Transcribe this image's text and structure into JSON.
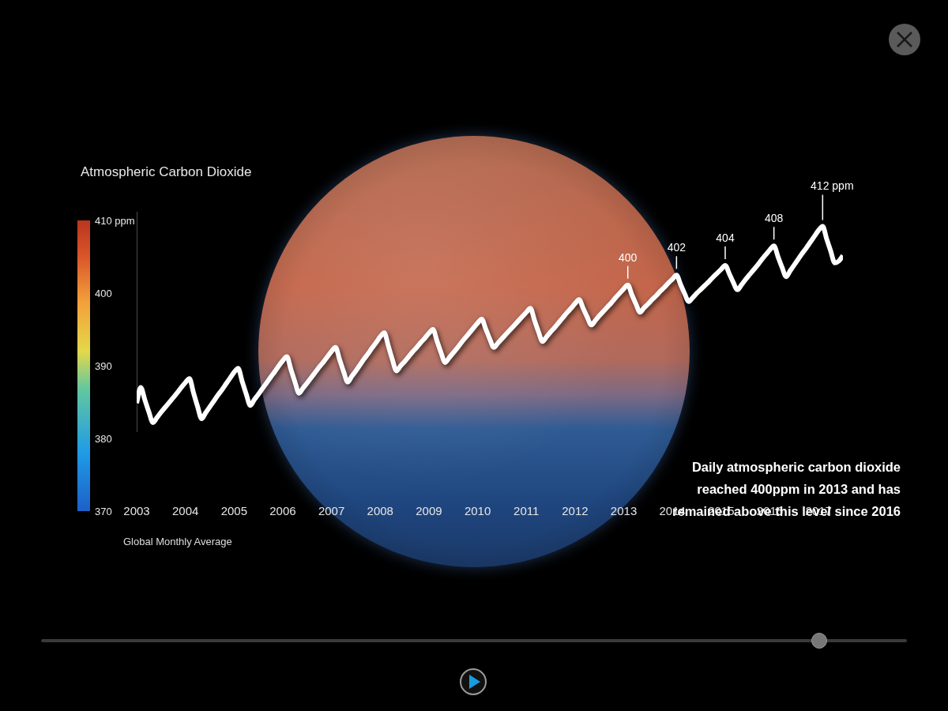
{
  "chart_data": {
    "type": "line",
    "title": "Atmospheric Carbon Dioxide",
    "caption": "Global Monthly Average",
    "note": "Daily atmospheric carbon dioxide reached 400ppm in 2013 and has remained above this level since 2016",
    "categories": [
      "2003",
      null,
      null,
      null,
      null,
      null,
      null,
      null,
      null,
      null,
      null,
      null,
      "2004",
      null,
      null,
      null,
      null,
      null,
      null,
      null,
      null,
      null,
      null,
      null,
      "2005",
      null,
      null,
      null,
      null,
      null,
      null,
      null,
      null,
      null,
      null,
      null,
      "2006",
      null,
      null,
      null,
      null,
      null,
      null,
      null,
      null,
      null,
      null,
      null,
      "2007",
      null,
      null,
      null,
      null,
      null,
      null,
      null,
      null,
      null,
      null,
      null,
      "2008",
      null,
      null,
      null,
      null,
      null,
      null,
      null,
      null,
      null,
      null,
      null,
      "2009",
      null,
      null,
      null,
      null,
      null,
      null,
      null,
      null,
      null,
      null,
      null,
      "2010",
      null,
      null,
      null,
      null,
      null,
      null,
      null,
      null,
      null,
      null,
      null,
      "2011",
      null,
      null,
      null,
      null,
      null,
      null,
      null,
      null,
      null,
      null,
      null,
      "2012",
      null,
      null,
      null,
      null,
      null,
      null,
      null,
      null,
      null,
      null,
      null,
      "2013",
      null,
      null,
      null,
      null,
      null,
      null,
      null,
      null,
      null,
      null,
      null,
      "2014",
      null,
      null,
      null,
      null,
      null,
      null,
      null,
      null,
      null,
      null,
      null,
      "2015",
      null,
      null,
      null,
      null,
      null,
      null,
      null,
      null,
      null,
      null,
      null,
      "2016",
      null,
      null,
      null,
      null,
      null,
      null,
      null,
      null,
      null,
      null,
      null,
      "2017",
      null,
      null,
      null,
      null,
      null,
      null
    ],
    "values": [
      375.8,
      379.0,
      376.5,
      374.0,
      371.8,
      372.8,
      373.9,
      374.9,
      375.9,
      376.9,
      377.9,
      379.0,
      380.0,
      380.8,
      377.9,
      375.1,
      372.6,
      373.8,
      375.0,
      376.2,
      377.4,
      378.5,
      379.7,
      380.9,
      382.1,
      382.9,
      380.2,
      377.6,
      375.3,
      376.5,
      377.6,
      378.8,
      379.9,
      381.1,
      382.2,
      383.4,
      384.5,
      385.3,
      382.7,
      380.1,
      377.8,
      378.9,
      379.9,
      381.0,
      382.1,
      383.2,
      384.2,
      385.3,
      386.4,
      387.2,
      384.7,
      382.2,
      380.1,
      381.3,
      382.4,
      383.6,
      384.8,
      385.9,
      387.1,
      388.2,
      389.4,
      390.2,
      387.5,
      384.7,
      382.4,
      383.4,
      384.3,
      385.3,
      386.3,
      387.2,
      388.2,
      389.1,
      390.1,
      390.9,
      388.5,
      386.1,
      384.1,
      385.1,
      386.1,
      387.1,
      388.2,
      389.2,
      390.2,
      391.2,
      392.2,
      393.0,
      391.0,
      388.9,
      387.2,
      388.1,
      389.0,
      389.9,
      390.8,
      391.7,
      392.6,
      393.5,
      394.4,
      395.2,
      392.8,
      390.4,
      388.4,
      389.4,
      390.4,
      391.3,
      392.3,
      393.3,
      394.3,
      395.2,
      396.2,
      397.0,
      395.2,
      393.4,
      391.8,
      392.7,
      393.7,
      394.6,
      395.5,
      396.4,
      397.4,
      398.3,
      399.2,
      400.0,
      398.0,
      396.1,
      394.4,
      395.3,
      396.1,
      397.0,
      397.8,
      398.7,
      399.5,
      400.4,
      401.2,
      402.0,
      400.1,
      398.2,
      396.6,
      397.4,
      398.3,
      399.1,
      399.9,
      400.7,
      401.6,
      402.4,
      403.2,
      404.0,
      402.3,
      400.5,
      399.0,
      400.0,
      401.1,
      402.1,
      403.1,
      404.1,
      405.2,
      406.2,
      407.2,
      408.0,
      405.8,
      403.6,
      401.7,
      402.9,
      404.1,
      405.3,
      406.5,
      407.6,
      408.8,
      410.0,
      411.2,
      412.0,
      409.4,
      406.9,
      404.5,
      404.9,
      406.0
    ],
    "color": "#ffffff",
    "ylim": [
      370,
      415
    ],
    "tick_labels": "x",
    "grid": false,
    "annotations": [
      {
        "text": "400",
        "value": 400,
        "point": 121
      },
      {
        "text": "402",
        "value": 402,
        "point": 133
      },
      {
        "text": "404",
        "value": 404,
        "point": 145
      },
      {
        "text": "408",
        "value": 408,
        "point": 157
      },
      {
        "text": "412 ppm",
        "value": 412,
        "point": 169
      }
    ],
    "colorbar": {
      "range": [
        370,
        410
      ],
      "ticks": [
        370,
        380,
        390,
        400,
        {
          "value": 410,
          "label": "410 ppm"
        }
      ]
    }
  }
}
